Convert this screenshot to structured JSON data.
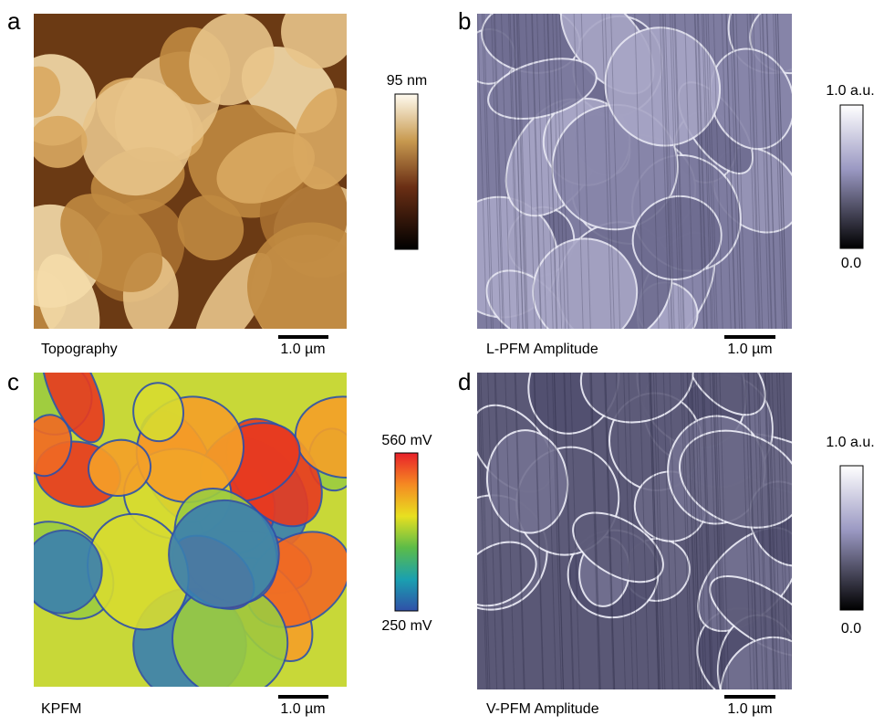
{
  "panels": [
    {
      "label": "a",
      "caption": "Topography",
      "scale_bar": "1.0 µm",
      "colorbar_max": "95 nm"
    },
    {
      "label": "b",
      "caption": "L-PFM  Amplitude",
      "scale_bar": "1.0 µm",
      "colorbar_max": "1.0 a.u.",
      "colorbar_min": "0.0"
    },
    {
      "label": "c",
      "caption": "KPFM",
      "scale_bar": "1.0 µm",
      "colorbar_max": "560 mV",
      "colorbar_min": "250 mV"
    },
    {
      "label": "d",
      "caption": "V-PFM  Amplitude",
      "scale_bar": "1.0 µm",
      "colorbar_max": "1.0 a.u.",
      "colorbar_min": "0.0"
    }
  ]
}
